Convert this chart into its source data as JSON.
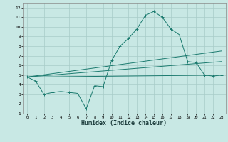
{
  "xlabel": "Humidex (Indice chaleur)",
  "bg_color": "#c8e8e4",
  "line_color": "#1a7a6e",
  "grid_color": "#a8ccc8",
  "xlim": [
    -0.5,
    23.5
  ],
  "ylim": [
    1,
    12.5
  ],
  "xticks": [
    0,
    1,
    2,
    3,
    4,
    5,
    6,
    7,
    8,
    9,
    10,
    11,
    12,
    13,
    14,
    15,
    16,
    17,
    18,
    19,
    20,
    21,
    22,
    23
  ],
  "yticks": [
    1,
    2,
    3,
    4,
    5,
    6,
    7,
    8,
    9,
    10,
    11,
    12
  ],
  "series1_x": [
    0,
    1,
    2,
    3,
    4,
    5,
    6,
    7,
    8,
    9,
    10,
    11,
    12,
    13,
    14,
    15,
    16,
    17,
    18,
    19,
    20,
    21,
    22,
    23
  ],
  "series1_y": [
    4.8,
    4.4,
    3.0,
    3.2,
    3.3,
    3.2,
    3.1,
    1.5,
    3.9,
    3.8,
    6.5,
    8.0,
    8.8,
    9.8,
    11.2,
    11.6,
    11.0,
    9.8,
    9.2,
    6.4,
    6.3,
    5.0,
    4.9,
    5.0
  ],
  "series2_x": [
    0,
    23
  ],
  "series2_y": [
    4.8,
    5.0
  ],
  "series3_x": [
    0,
    23
  ],
  "series3_y": [
    4.8,
    7.5
  ],
  "series4_x": [
    0,
    23
  ],
  "series4_y": [
    4.8,
    6.4
  ]
}
